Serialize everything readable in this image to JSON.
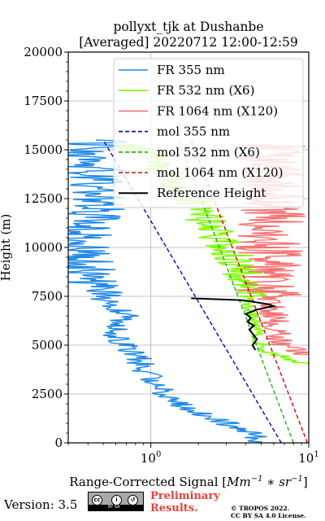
{
  "chart_data": {
    "type": "line",
    "title": "pollyxt_tjk at Dushanbe",
    "subtitle": "[Averaged] 20220712 12:00-12:59",
    "xlabel_text": "Range-Corrected Signal [",
    "xlabel_unit": "Mm",
    "xlabel_exp1": "−1",
    "xlabel_mid": " ∗ sr",
    "xlabel_exp2": "−1",
    "xlabel_end": "]",
    "ylabel": "Height (m)",
    "x_scale": "log",
    "xlim": [
      0.3,
      10
    ],
    "ylim": [
      0,
      20000
    ],
    "x_ticks": [
      {
        "value": 1,
        "base": "10",
        "exp": "0"
      },
      {
        "value": 10,
        "base": "10",
        "exp": "1"
      }
    ],
    "y_ticks": [
      0,
      2500,
      5000,
      7500,
      10000,
      12500,
      15000,
      17500,
      20000
    ],
    "grid": true,
    "legend_position": "top-right",
    "legend": [
      {
        "label": "FR 355 nm",
        "color": "#1e88e5",
        "style": "solid"
      },
      {
        "label": "FR 532 nm (X6)",
        "color": "#7cfc00",
        "style": "solid"
      },
      {
        "label": "FR 1064 nm (X120)",
        "color": "#f47272",
        "style": "solid"
      },
      {
        "label": "mol 355 nm",
        "color": "#0000cc",
        "style": "dashed"
      },
      {
        "label": "mol 532 nm (X6)",
        "color": "#22aa22",
        "style": "dashed"
      },
      {
        "label": "mol 1064 nm (X120)",
        "color": "#dd0000",
        "style": "dashed"
      },
      {
        "label": "Reference Height",
        "color": "#000000",
        "style": "solid"
      }
    ],
    "series": [
      {
        "name": "FR 355 nm",
        "color": "#1e88e5",
        "style": "solid",
        "noise": 0.18,
        "points": [
          [
            4.9,
            0
          ],
          [
            4.5,
            500
          ],
          [
            3.0,
            1000
          ],
          [
            2.0,
            1500
          ],
          [
            1.5,
            2000
          ],
          [
            1.25,
            2500
          ],
          [
            1.05,
            3000
          ],
          [
            0.95,
            3500
          ],
          [
            0.88,
            4000
          ],
          [
            0.8,
            4500
          ],
          [
            0.7,
            5000
          ],
          [
            0.6,
            5500
          ],
          [
            0.65,
            6000
          ],
          [
            0.7,
            6500
          ],
          [
            0.6,
            7000
          ],
          [
            0.45,
            7500
          ],
          [
            0.4,
            8000
          ],
          [
            0.38,
            9000
          ],
          [
            0.38,
            10000
          ],
          [
            0.4,
            11000
          ],
          [
            0.45,
            12000
          ],
          [
            0.45,
            13000
          ],
          [
            0.45,
            14000
          ],
          [
            0.45,
            15000
          ],
          [
            0.45,
            15500
          ]
        ]
      },
      {
        "name": "FR 532 nm (X6)",
        "color": "#7cfc00",
        "style": "solid",
        "noise": 0.12,
        "points": [
          [
            10,
            4000
          ],
          [
            7.5,
            4300
          ],
          [
            5.8,
            4600
          ],
          [
            5.0,
            5000
          ],
          [
            4.8,
            5500
          ],
          [
            4.6,
            6000
          ],
          [
            4.5,
            6500
          ],
          [
            4.3,
            7000
          ],
          [
            4.1,
            7500
          ],
          [
            4.0,
            8000
          ],
          [
            3.9,
            8500
          ],
          [
            3.7,
            9000
          ],
          [
            3.4,
            9500
          ],
          [
            3.0,
            10000
          ],
          [
            2.7,
            10500
          ],
          [
            2.4,
            11000
          ],
          [
            2.2,
            11500
          ],
          [
            2.0,
            12000
          ],
          [
            1.8,
            12500
          ],
          [
            1.6,
            13000
          ],
          [
            1.4,
            13500
          ],
          [
            1.2,
            14000
          ],
          [
            1.0,
            14500
          ],
          [
            0.8,
            15000
          ],
          [
            0.7,
            15300
          ]
        ]
      },
      {
        "name": "FR 1064 nm (X120)",
        "color": "#f47272",
        "style": "solid",
        "noise": 0.2,
        "points": [
          [
            10,
            4500
          ],
          [
            7.0,
            5000
          ],
          [
            6.5,
            5500
          ],
          [
            6.2,
            6000
          ],
          [
            6.0,
            6500
          ],
          [
            5.8,
            7000
          ],
          [
            5.6,
            7500
          ],
          [
            5.6,
            8000
          ],
          [
            5.6,
            8500
          ],
          [
            5.8,
            9000
          ],
          [
            5.8,
            9500
          ],
          [
            5.6,
            10000
          ],
          [
            5.6,
            10500
          ],
          [
            5.8,
            11000
          ],
          [
            5.8,
            11500
          ],
          [
            5.8,
            12000
          ],
          [
            5.8,
            12500
          ],
          [
            5.8,
            13000
          ],
          [
            5.8,
            13500
          ],
          [
            5.8,
            14000
          ],
          [
            5.8,
            14500
          ],
          [
            5.8,
            15000
          ],
          [
            5.8,
            15300
          ]
        ]
      },
      {
        "name": "mol 355 nm",
        "color": "#0000cc",
        "style": "dashed",
        "noise": 0,
        "points": [
          [
            6.7,
            0
          ],
          [
            0.5,
            15500
          ]
        ]
      },
      {
        "name": "mol 532 nm (X6)",
        "color": "#22aa22",
        "style": "dashed",
        "noise": 0,
        "points": [
          [
            8.0,
            0
          ],
          [
            1.5,
            15500
          ]
        ]
      },
      {
        "name": "mol 1064 nm (X120)",
        "color": "#dd0000",
        "style": "dashed",
        "noise": 0,
        "points": [
          [
            9.8,
            0
          ],
          [
            1.8,
            15500
          ]
        ]
      },
      {
        "name": "Reference Height",
        "color": "#000000",
        "style": "solid",
        "noise": 0,
        "points": [
          [
            4.6,
            4750
          ],
          [
            4.4,
            5000
          ],
          [
            4.7,
            5300
          ],
          [
            4.4,
            5600
          ],
          [
            4.2,
            5800
          ],
          [
            4.5,
            6000
          ],
          [
            4.1,
            6200
          ],
          [
            4.3,
            6400
          ],
          [
            4.0,
            6600
          ],
          [
            4.6,
            6800
          ],
          [
            5.2,
            6900
          ],
          [
            6.0,
            7000
          ],
          [
            5.5,
            7100
          ],
          [
            4.6,
            7200
          ],
          [
            3.8,
            7300
          ],
          [
            1.8,
            7400
          ]
        ]
      }
    ]
  },
  "footer": {
    "version": "Version: 3.5",
    "cc_label": "BY SA",
    "preliminary": "Preliminary Results.",
    "copyright_line1": "© TROPOS 2022.",
    "copyright_line2": "CC BY SA 4.0 License."
  }
}
